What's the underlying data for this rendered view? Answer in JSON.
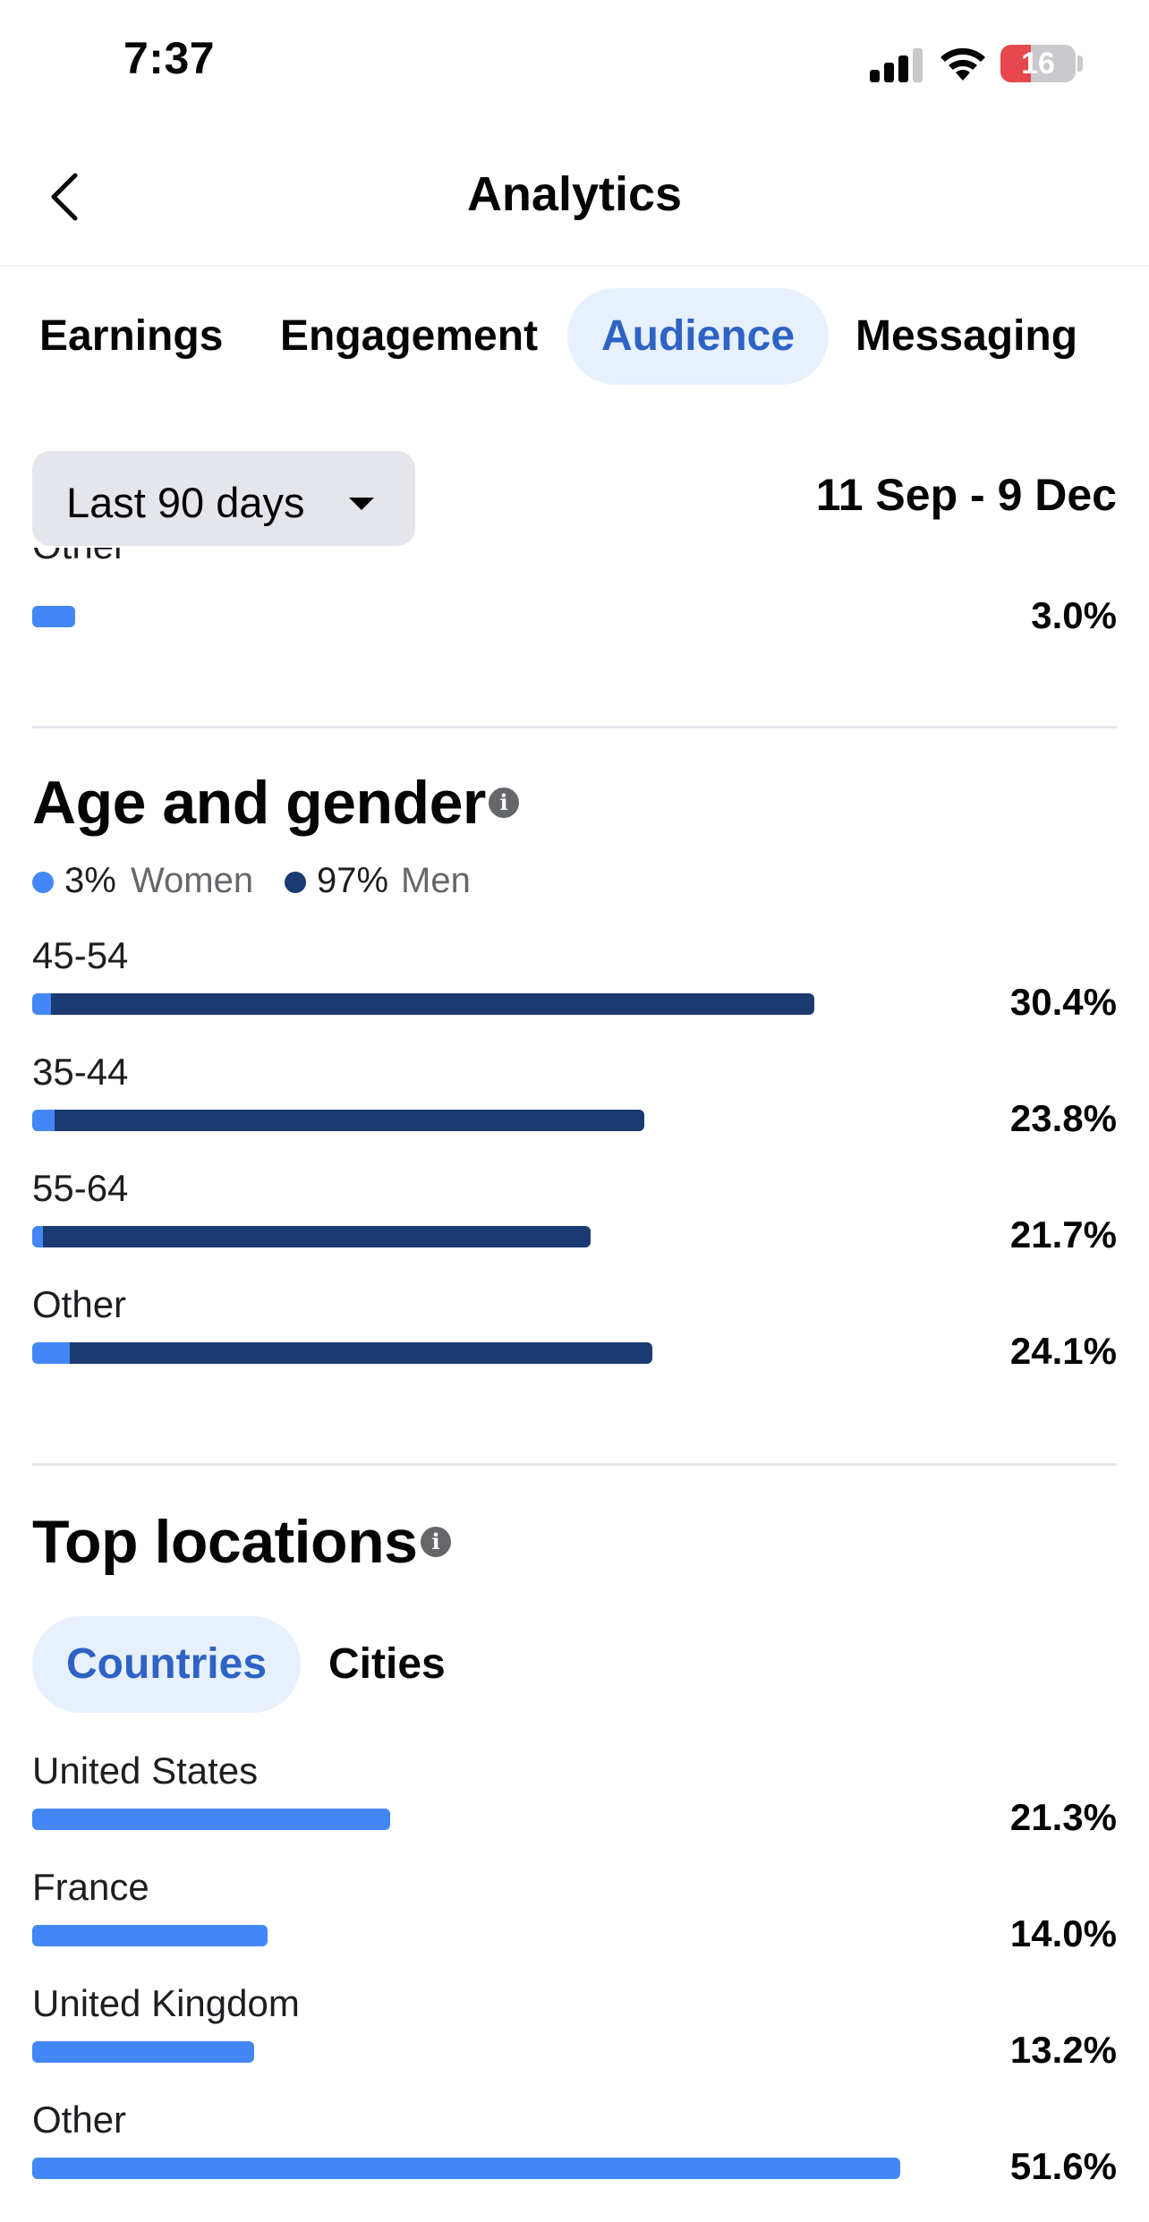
{
  "status_bar": {
    "time": "7:37",
    "battery": "16"
  },
  "header": {
    "title": "Analytics"
  },
  "tabs": [
    {
      "label": "Earnings"
    },
    {
      "label": "Engagement"
    },
    {
      "label": "Audience"
    },
    {
      "label": "Messaging"
    }
  ],
  "active_tab": "Audience",
  "filter": {
    "range_label": "Last 90 days",
    "date_range": "11 Sep - 9 Dec"
  },
  "prev_section_tail": {
    "label": "Other",
    "percent": "3.0%",
    "share": 0.03
  },
  "age_gender": {
    "title": "Age and gender",
    "legend": [
      {
        "value": "3%",
        "label": "Women",
        "color": "#4287f5"
      },
      {
        "value": "97%",
        "label": "Men",
        "color": "#1b3a72"
      }
    ],
    "rows": [
      {
        "label": "45-54",
        "percent": "30.4%",
        "total": 30.4,
        "women_share": 0.02
      },
      {
        "label": "35-44",
        "percent": "23.8%",
        "total": 23.8,
        "women_share": 0.03
      },
      {
        "label": "55-64",
        "percent": "21.7%",
        "total": 21.7,
        "women_share": 0.015
      },
      {
        "label": "Other",
        "percent": "24.1%",
        "total": 24.1,
        "women_share": 0.05
      }
    ]
  },
  "top_locations": {
    "title": "Top locations",
    "subtabs": [
      {
        "label": "Countries"
      },
      {
        "label": "Cities"
      }
    ],
    "active_subtab": "Countries",
    "rows": [
      {
        "label": "United States",
        "percent": "21.3%",
        "value": 21.3
      },
      {
        "label": "France",
        "percent": "14.0%",
        "value": 14.0
      },
      {
        "label": "United Kingdom",
        "percent": "13.2%",
        "value": 13.2
      },
      {
        "label": "Other",
        "percent": "51.6%",
        "value": 51.6
      }
    ]
  },
  "colors": {
    "accent": "#2e63c5",
    "women": "#4287f5",
    "men": "#1b3a72"
  }
}
